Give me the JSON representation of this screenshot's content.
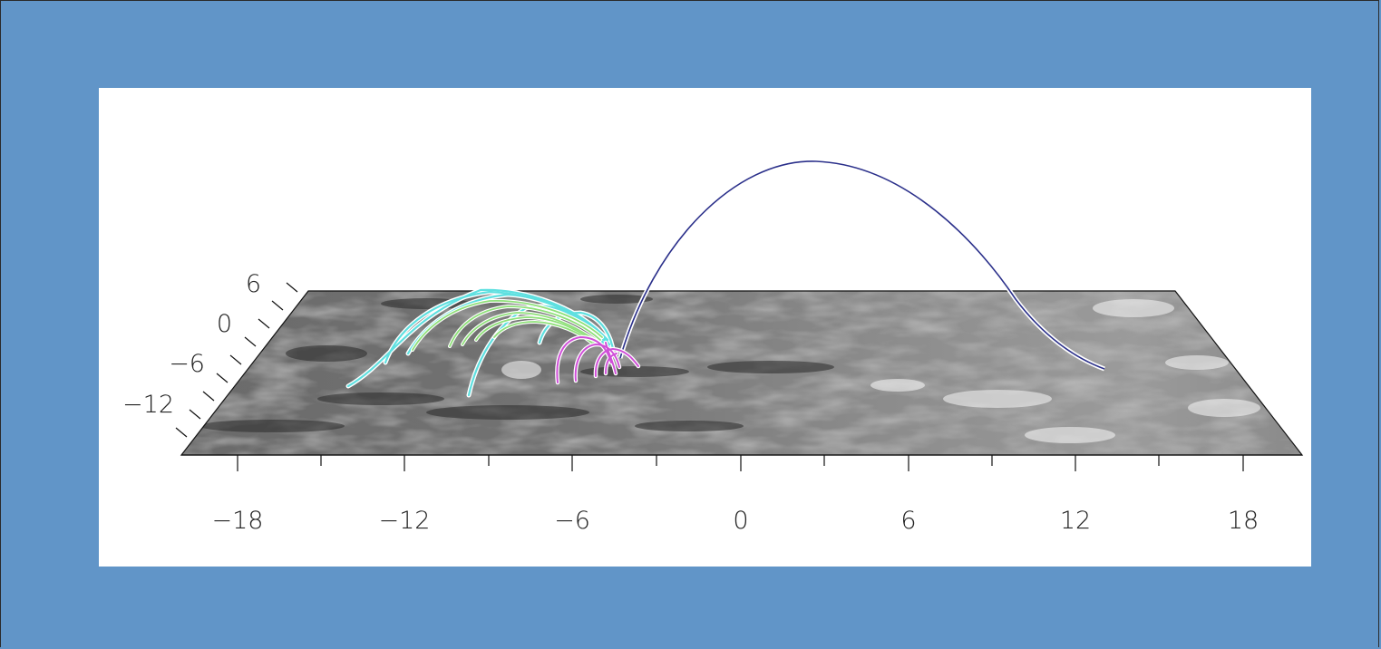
{
  "plot": {
    "x_ticks": [
      "−18",
      "−12",
      "−6",
      "0",
      "6",
      "12",
      "18"
    ],
    "y_ticks": [
      "6",
      "0",
      "−6",
      "−12"
    ]
  },
  "colors": {
    "background": "#6195c8",
    "panel": "#ffffff",
    "cyan_field_lines": "#5fe0e0",
    "green_field_lines": "#8fe07a",
    "magenta_field_lines": "#d04fd8",
    "large_loop": "#2a2f8a"
  }
}
